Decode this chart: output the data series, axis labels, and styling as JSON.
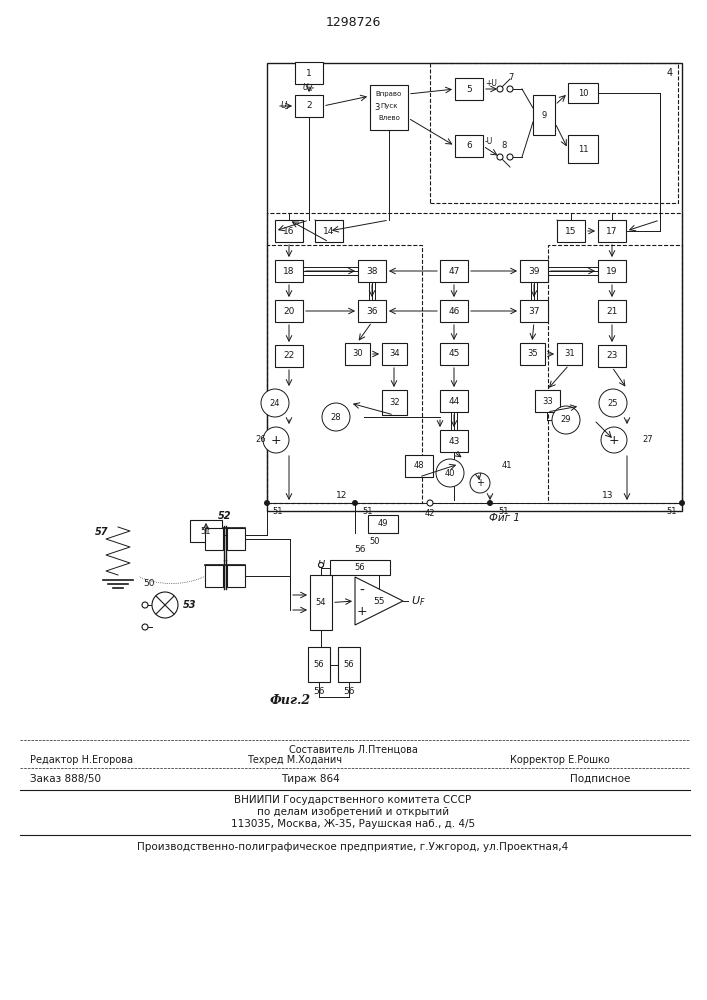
{
  "title": "1298726",
  "fig1_label": "Фиг 1",
  "fig2_label": "Фиг.2",
  "bg_color": "#ffffff",
  "line_color": "#1a1a1a",
  "footer": {
    "line1_center": "Составитель Л.Птенцова",
    "line2_left": "Редактор Н.Егорова",
    "line2_center": "Техред М.Ходанич",
    "line2_right": "Корректор Е.Рошко",
    "line3_left": "Заказ 888/50",
    "line3_center": "Тираж 864",
    "line3_right": "Подписное",
    "line4": "ВНИИПИ Государственного комитета СССР",
    "line5": "по делам изобретений и открытий",
    "line6": "113035, Москва, Ж-35, Раушская наб., д. 4/5",
    "line7": "Производственно-полиграфическое предприятие, г.Ужгород, ул.Проектная,4"
  }
}
